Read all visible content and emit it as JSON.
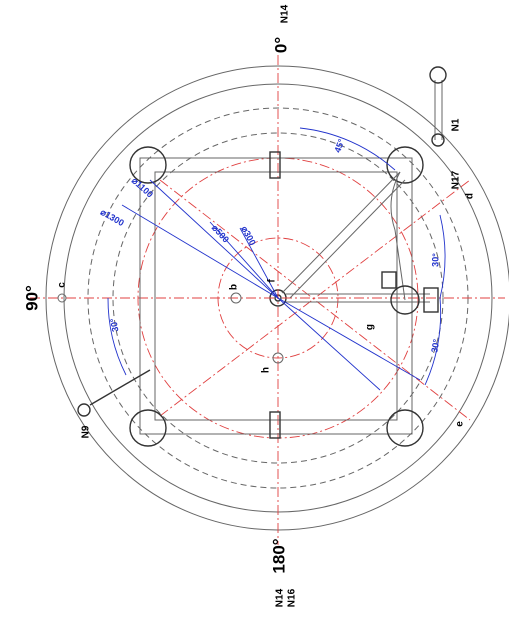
{
  "drawing": {
    "angles": {
      "top": "0°",
      "left": "90°",
      "bottom": "180°"
    },
    "nozzles": {
      "top": "N14",
      "bottom_1": "N14",
      "bottom_2": "N16",
      "n1": "N1",
      "n17": "N17",
      "n9": "N9"
    },
    "points": {
      "b": "b",
      "c": "c",
      "d": "d",
      "e": "e",
      "f": "f",
      "g": "g",
      "h": "h"
    },
    "dimensions": {
      "a45": "45°",
      "a30_right_top": "30°",
      "a30_right_bottom": "30°",
      "a30_left": "30°",
      "d1300": "⌀1300",
      "d1100": "⌀1100",
      "d500": "⌀500",
      "d300": "⌀300"
    }
  }
}
